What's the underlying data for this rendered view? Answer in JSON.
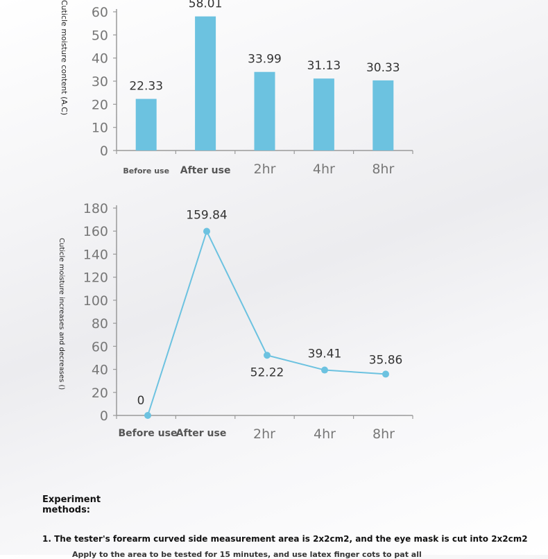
{
  "chart_data": [
    {
      "type": "bar",
      "categories": [
        "Before use",
        "After use",
        "2hr",
        "4hr",
        "8hr"
      ],
      "values": [
        22.33,
        58.01,
        33.99,
        31.13,
        30.33
      ],
      "value_labels": [
        "22.33",
        "58.01",
        "33.99",
        "31.13",
        "30.33"
      ],
      "ylabel": "Cuticle moisture content (A.C)",
      "ylim": [
        0,
        60
      ],
      "yticks": [
        0,
        10,
        20,
        30,
        40,
        50,
        60
      ],
      "grid": false,
      "color": "#6cc2e0"
    },
    {
      "type": "line",
      "categories": [
        "Before use",
        "After use",
        "2hr",
        "4hr",
        "8hr"
      ],
      "values": [
        0,
        159.84,
        52.22,
        39.41,
        35.86
      ],
      "value_labels": [
        "0",
        "159.84",
        "52.22",
        "39.41",
        "35.86"
      ],
      "ylabel": "Cuticle moisture increases and decreases ()",
      "ylim": [
        0,
        180
      ],
      "yticks": [
        0,
        20,
        40,
        60,
        80,
        100,
        120,
        140,
        160,
        180
      ],
      "grid": false,
      "color": "#6cc2e0"
    }
  ],
  "methods": {
    "heading": "Experiment methods:",
    "step1": "1. The tester's forearm curved side measurement area is 2x2cm2, and the eye mask is cut into 2x2cm2",
    "step2": "Apply to the area to be tested for 15 minutes, and use latex finger cots to pat all"
  }
}
